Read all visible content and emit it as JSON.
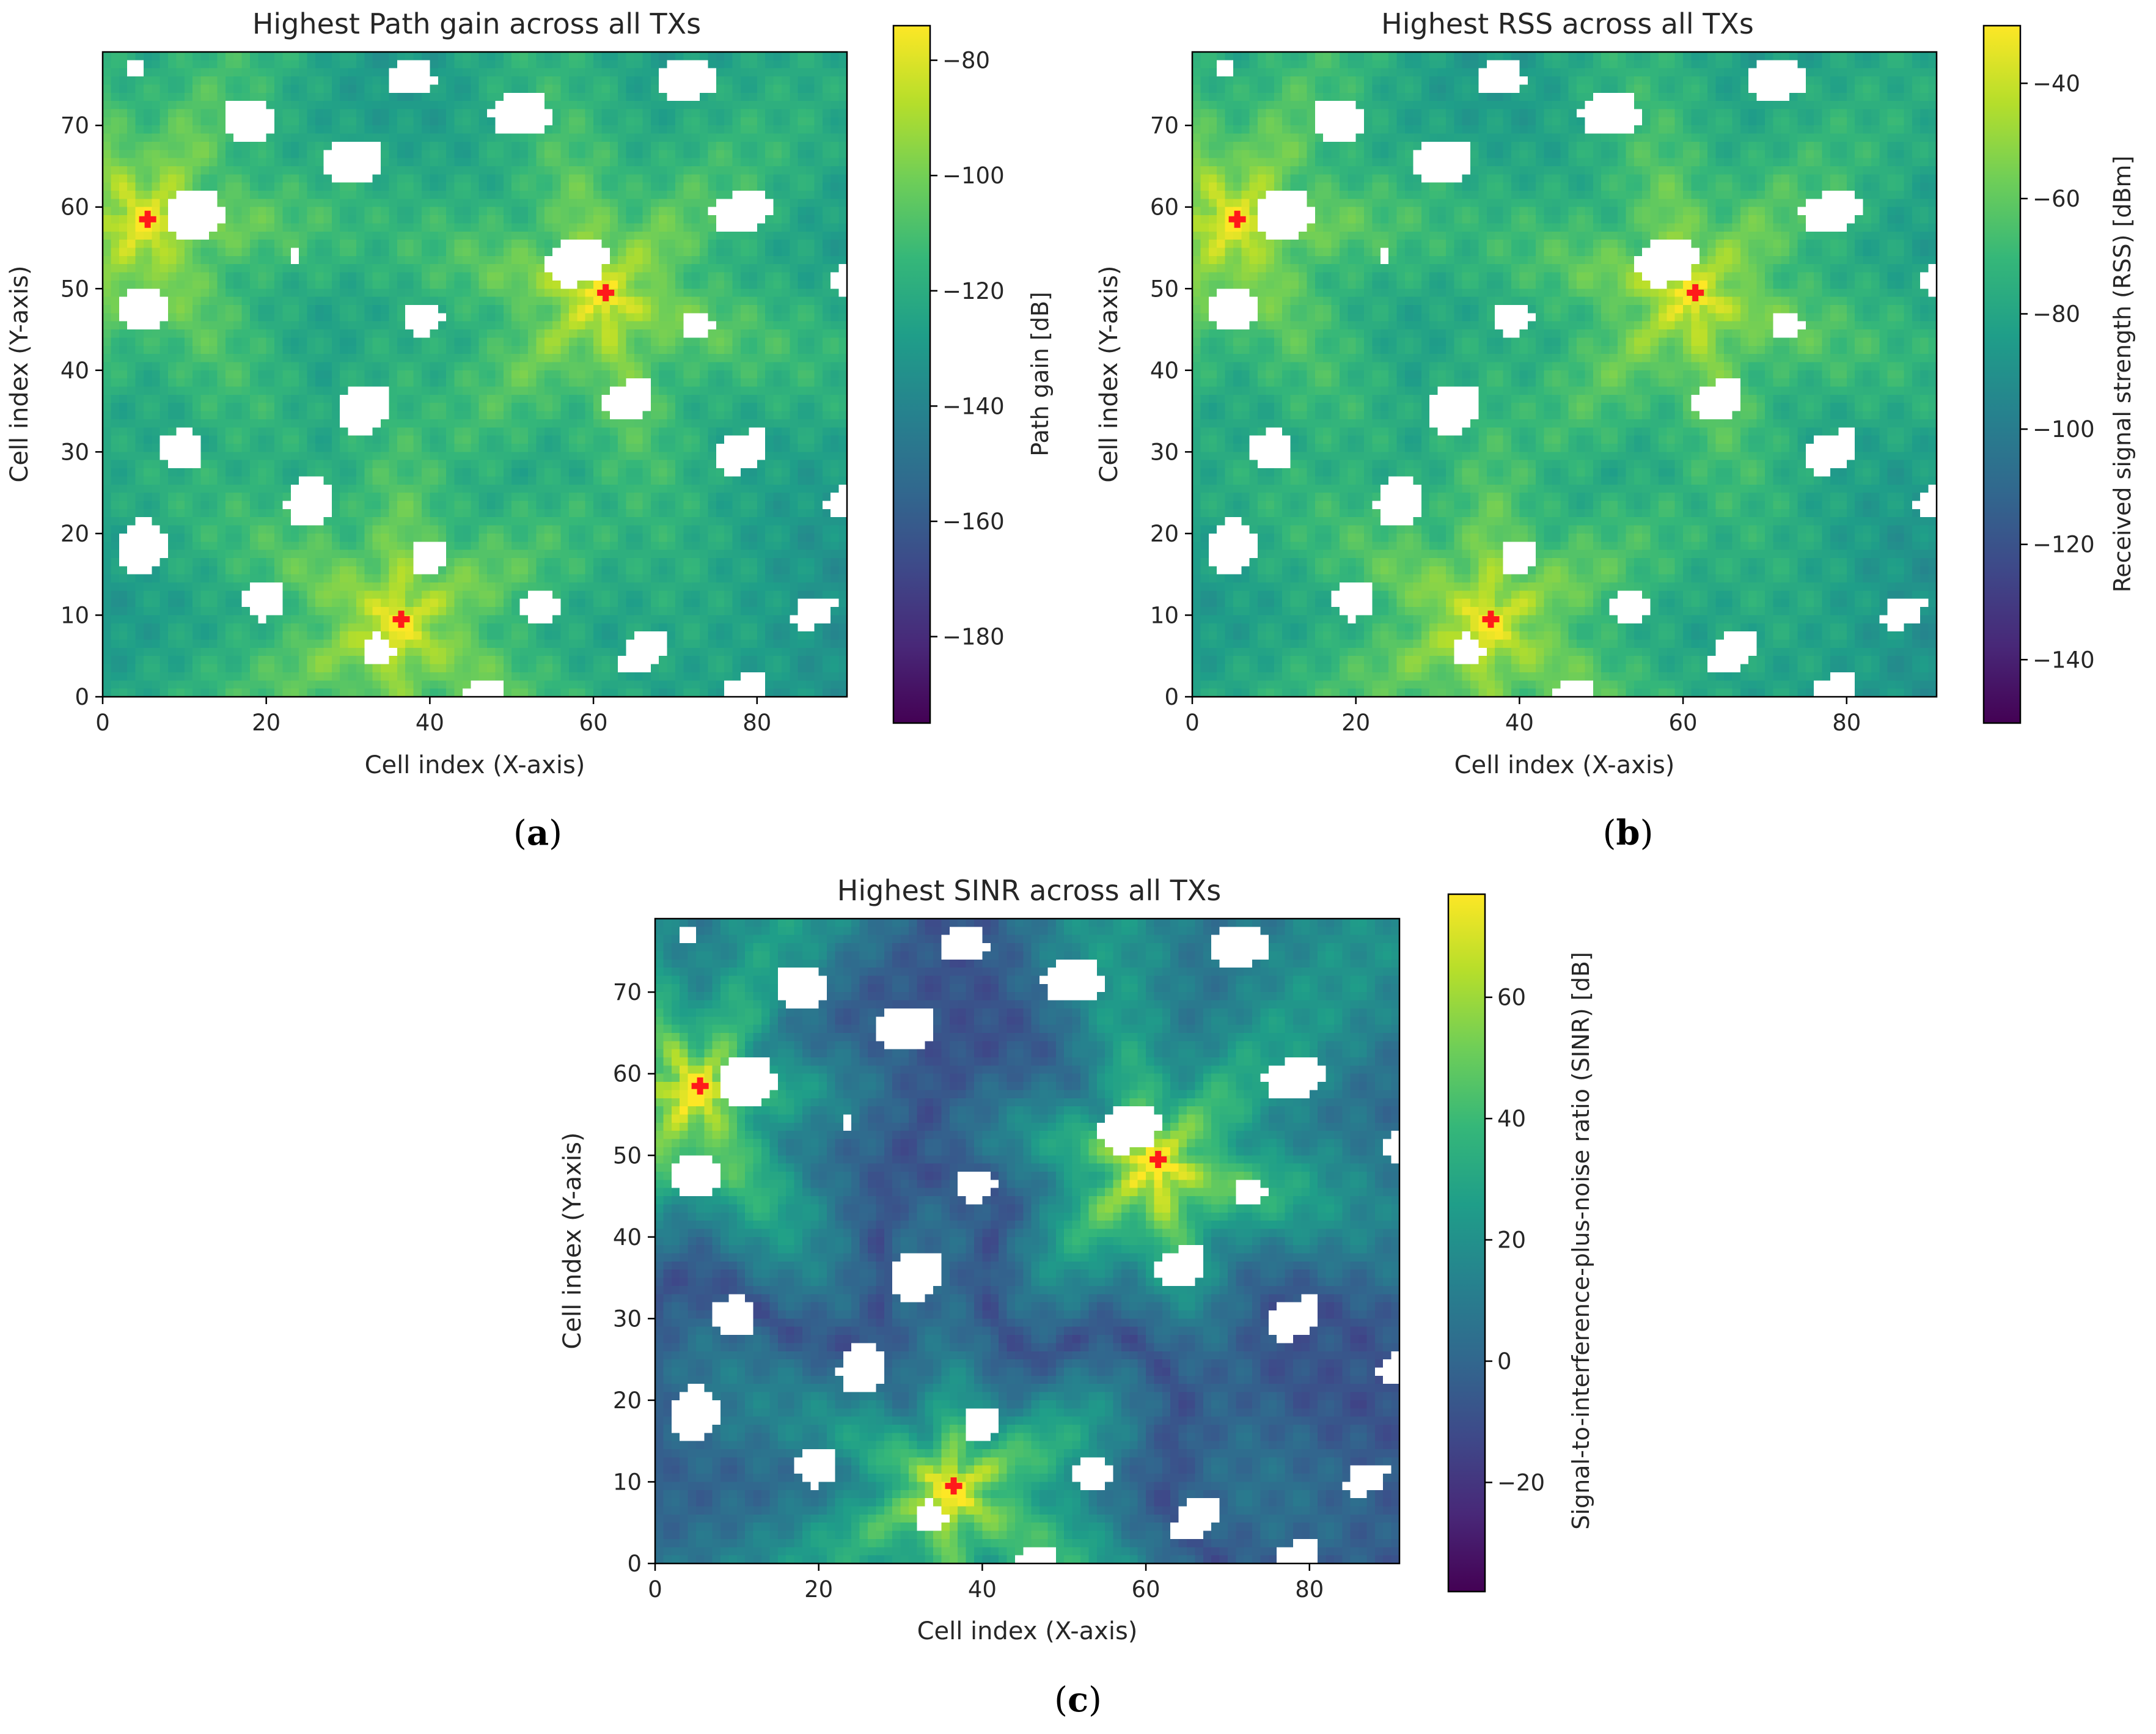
{
  "figure": {
    "panels": [
      {
        "caption": "(a)",
        "caption_letter": "a"
      },
      {
        "caption": "(b)",
        "caption_letter": "b"
      },
      {
        "caption": "(c)",
        "caption_letter": "c"
      }
    ]
  },
  "colors": {
    "viridis": [
      "#440154",
      "#482878",
      "#3e4989",
      "#31688e",
      "#26828e",
      "#1f9e89",
      "#35b779",
      "#6ece58",
      "#b5de2b",
      "#fde725"
    ],
    "transmitter_marker": "#ff1a1a",
    "obstacle": "#ffffff"
  },
  "chart_data": [
    {
      "type": "heatmap",
      "title": "Highest Path gain across all TXs",
      "xlabel": "Cell index (X-axis)",
      "ylabel": "Cell index (Y-axis)",
      "xlim": [
        0,
        91
      ],
      "ylim": [
        0,
        79
      ],
      "xticks": [
        0,
        20,
        40,
        60,
        80
      ],
      "yticks": [
        0,
        10,
        20,
        30,
        40,
        50,
        60,
        70
      ],
      "colorbar": {
        "label": "Path gain [dB]",
        "min": -195,
        "max": -74,
        "ticks": [
          -80,
          -100,
          -120,
          -140,
          -160,
          -180
        ]
      },
      "colormap": "viridis",
      "transmitters": [
        {
          "x": 5,
          "y": 58
        },
        {
          "x": 61,
          "y": 49
        },
        {
          "x": 36,
          "y": 9
        }
      ],
      "grid": false
    },
    {
      "type": "heatmap",
      "title": "Highest RSS across all TXs",
      "xlabel": "Cell index (X-axis)",
      "ylabel": "Cell index (Y-axis)",
      "xlim": [
        0,
        91
      ],
      "ylim": [
        0,
        79
      ],
      "xticks": [
        0,
        20,
        40,
        60,
        80
      ],
      "yticks": [
        0,
        10,
        20,
        30,
        40,
        50,
        60,
        70
      ],
      "colorbar": {
        "label": "Received signal strength (RSS) [dBm]",
        "min": -151,
        "max": -30,
        "ticks": [
          -40,
          -60,
          -80,
          -100,
          -120,
          -140
        ]
      },
      "colormap": "viridis",
      "transmitters": [
        {
          "x": 5,
          "y": 58
        },
        {
          "x": 61,
          "y": 49
        },
        {
          "x": 36,
          "y": 9
        }
      ],
      "grid": false
    },
    {
      "type": "heatmap",
      "title": "Highest SINR across all TXs",
      "xlabel": "Cell index (X-axis)",
      "ylabel": "Cell index (Y-axis)",
      "xlim": [
        0,
        91
      ],
      "ylim": [
        0,
        79
      ],
      "xticks": [
        0,
        20,
        40,
        60,
        80
      ],
      "yticks": [
        0,
        10,
        20,
        30,
        40,
        50,
        60,
        70
      ],
      "colorbar": {
        "label": "Signal-to-interference-plus-noise ratio (SINR) [dB]",
        "min": -38,
        "max": 77,
        "ticks": [
          60,
          40,
          20,
          0,
          -20
        ]
      },
      "colormap": "viridis",
      "transmitters": [
        {
          "x": 5,
          "y": 58
        },
        {
          "x": 61,
          "y": 49
        },
        {
          "x": 36,
          "y": 9
        }
      ],
      "grid": false
    }
  ]
}
